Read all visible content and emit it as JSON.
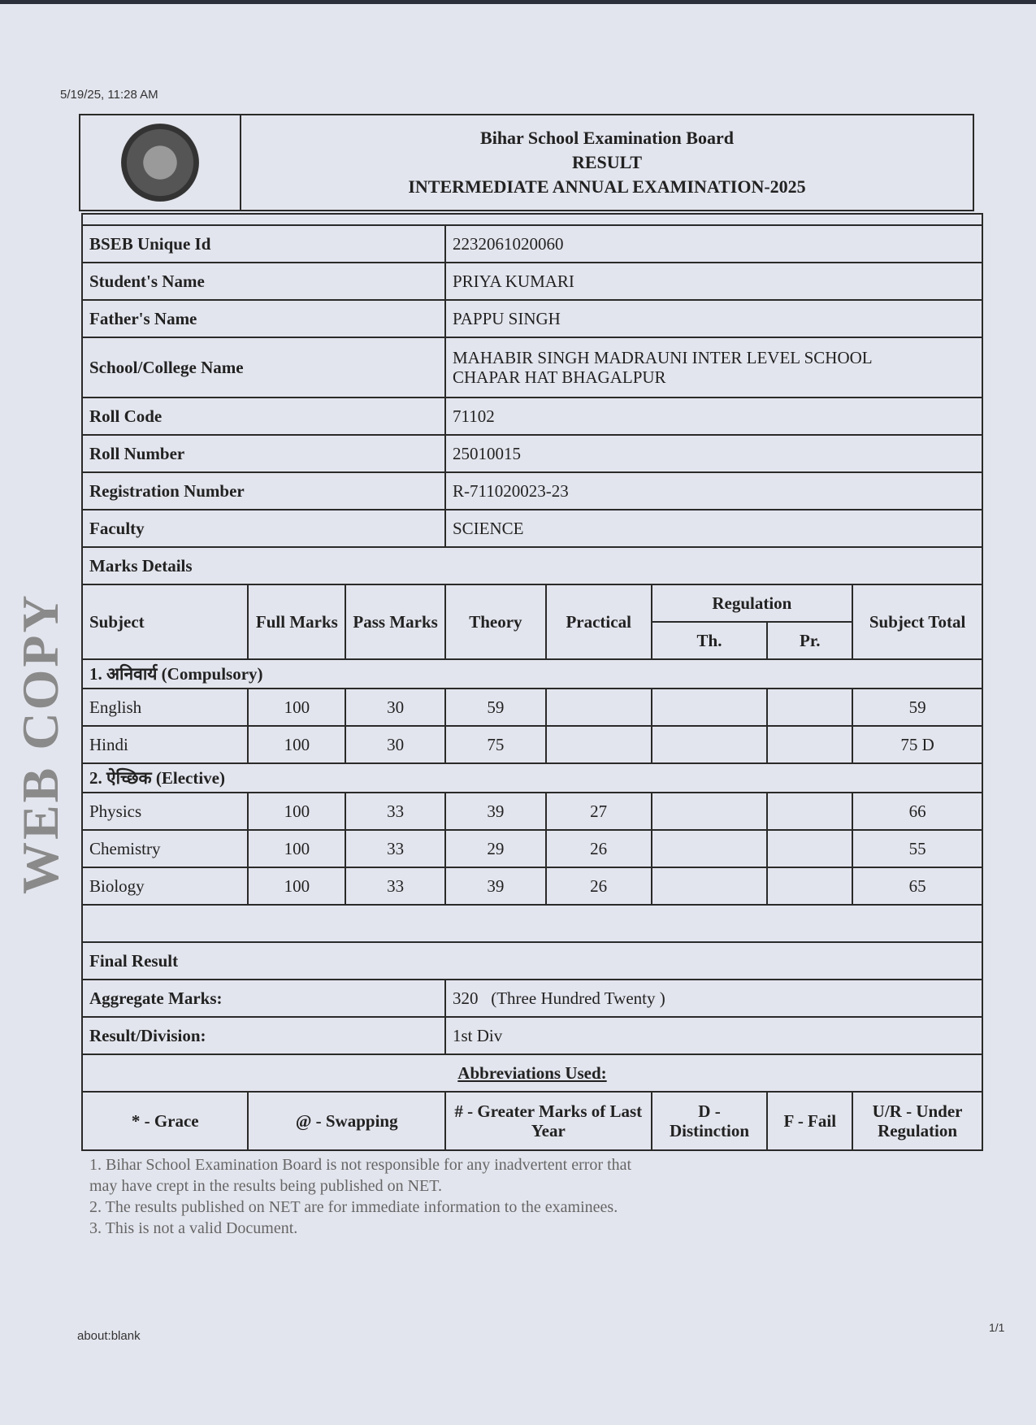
{
  "print_timestamp": "5/19/25, 11:28 AM",
  "footer": {
    "url": "about:blank",
    "page": "1/1"
  },
  "header": {
    "board": "Bihar School Examination Board",
    "title": "RESULT",
    "exam": "INTERMEDIATE ANNUAL EXAMINATION-2025"
  },
  "student": {
    "unique_id_label": "BSEB Unique Id",
    "unique_id": "2232061020060",
    "name_label": "Student's Name",
    "name": "PRIYA KUMARI",
    "father_label": "Father's Name",
    "father": "PAPPU SINGH",
    "school_label": "School/College Name",
    "school_line1": "MAHABIR SINGH MADRAUNI INTER LEVEL SCHOOL",
    "school_line2": "CHAPAR HAT BHAGALPUR",
    "roll_code_label": "Roll Code",
    "roll_code": "71102",
    "roll_number_label": "Roll Number",
    "roll_number": "25010015",
    "registration_label": "Registration Number",
    "registration": "R-711020023-23",
    "faculty_label": "Faculty",
    "faculty": "SCIENCE"
  },
  "marks": {
    "section_label": "Marks Details",
    "headers": {
      "subject": "Subject",
      "full": "Full Marks",
      "pass": "Pass Marks",
      "theory": "Theory",
      "practical": "Practical",
      "regulation": "Regulation",
      "th": "Th.",
      "pr": "Pr.",
      "total": "Subject Total"
    },
    "groups": [
      {
        "label": "1. अनिवार्य (Compulsory)",
        "rows": [
          {
            "subject": "English",
            "full": "100",
            "pass": "30",
            "theory": "59",
            "practical": "",
            "th": "",
            "pr": "",
            "total": "59"
          },
          {
            "subject": "Hindi",
            "full": "100",
            "pass": "30",
            "theory": "75",
            "practical": "",
            "th": "",
            "pr": "",
            "total": "75 D"
          }
        ]
      },
      {
        "label": "2. ऐच्छिक (Elective)",
        "rows": [
          {
            "subject": "Physics",
            "full": "100",
            "pass": "33",
            "theory": "39",
            "practical": "27",
            "th": "",
            "pr": "",
            "total": "66"
          },
          {
            "subject": "Chemistry",
            "full": "100",
            "pass": "33",
            "theory": "29",
            "practical": "26",
            "th": "",
            "pr": "",
            "total": "55"
          },
          {
            "subject": "Biology",
            "full": "100",
            "pass": "33",
            "theory": "39",
            "practical": "26",
            "th": "",
            "pr": "",
            "total": "65"
          }
        ]
      }
    ]
  },
  "final": {
    "label": "Final Result",
    "aggregate_label": "Aggregate Marks:",
    "aggregate": "320",
    "aggregate_words": "(Three Hundred Twenty )",
    "division_label": "Result/Division:",
    "division": "1st Div"
  },
  "abbreviations": {
    "title": "Abbreviations Used:",
    "items": [
      "* - Grace",
      "@ - Swapping",
      "# - Greater Marks of Last Year",
      "D - Distinction",
      "F - Fail",
      "U/R - Under Regulation"
    ]
  },
  "watermark": {
    "big": "WEB COPY",
    "line1": "1. Bihar School Examination Board is not responsible for any inadvertent error that",
    "line1b": "may have crept in the results being published on NET.",
    "line2": "2. The results published on NET are for immediate information to the examinees.",
    "line3": "3. This is not a valid Document."
  }
}
